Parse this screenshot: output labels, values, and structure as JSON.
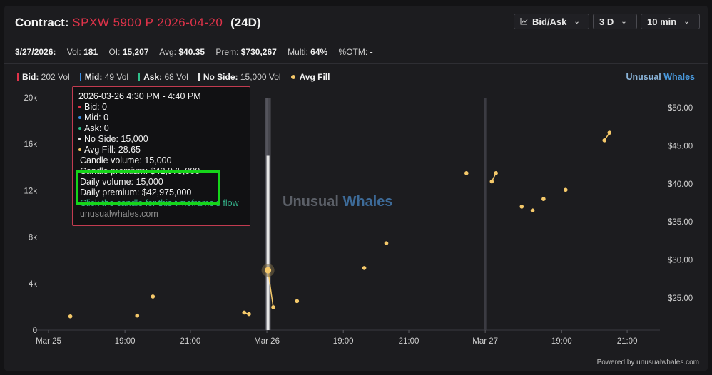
{
  "header": {
    "contract_label": "Contract:",
    "symbol": "SPXW 5900 P 2026-04-20",
    "days": "(24D)",
    "buttons": [
      {
        "label": "Bid/Ask",
        "icon": "chart-line-icon"
      },
      {
        "label": "3 D"
      },
      {
        "label": "10 min"
      }
    ]
  },
  "stats": {
    "date": "3/27/2026:",
    "vol_label": "Vol:",
    "vol": "181",
    "oi_label": "OI:",
    "oi": "15,207",
    "avg_label": "Avg:",
    "avg": "$40.35",
    "prem_label": "Prem:",
    "prem": "$730,267",
    "multi_label": "Multi:",
    "multi": "64%",
    "otm_label": "%OTM:",
    "otm": "-"
  },
  "legend": {
    "items": [
      {
        "name": "Bid:",
        "value": "202 Vol",
        "color": "#e0334a"
      },
      {
        "name": "Mid:",
        "value": "49 Vol",
        "color": "#3a8ee6"
      },
      {
        "name": "Ask:",
        "value": "68 Vol",
        "color": "#2fbf8a"
      },
      {
        "name": "No Side:",
        "value": "15,000 Vol",
        "color": "#e6e6e6"
      }
    ],
    "avg_fill": "Avg Fill",
    "avg_fill_color": "#f5c96a"
  },
  "brand": {
    "part1": "Unusual",
    "part2": "Whales"
  },
  "watermark": {
    "part1": "Unusual",
    "part2": "Whales"
  },
  "powered_by": "Powered by unusualwhales.com",
  "tooltip": {
    "time": "2026-03-26 4:30 PM - 4:40 PM",
    "bid": "Bid: 0",
    "mid": "Mid: 0",
    "ask": "Ask: 0",
    "no_side": "No Side: 15,000",
    "avg_fill": "Avg Fill: 28.65",
    "candle_volume": "Candle volume: 15,000",
    "candle_premium": "Candle premium: $42,975,000",
    "daily_volume": "Daily volume: 15,000",
    "daily_premium": "Daily premium: $42,975,000",
    "click_hint": "Click the candle for this timeframe's flow",
    "site": "unusualwhales.com"
  },
  "chart_data": {
    "type": "line",
    "x_tick_labels": [
      "Mar 25",
      "19:00",
      "21:00",
      "Mar 26",
      "19:00",
      "21:00",
      "Mar 27",
      "19:00",
      "21:00"
    ],
    "y_left_ticks": [
      "0",
      "4k",
      "8k",
      "12k",
      "16k",
      "20k"
    ],
    "y_left_range": [
      0,
      20000
    ],
    "y_right_ticks": [
      "$25.00",
      "$30.00",
      "$35.00",
      "$40.00",
      "$45.00",
      "$50.00"
    ],
    "y_right_range": [
      20.8,
      51.3
    ],
    "series": [
      {
        "name": "Avg Fill",
        "color": "#f5c96a",
        "points": [
          {
            "x": 1.0,
            "y": 22.6
          },
          {
            "x": 4.06,
            "y": 22.7
          },
          {
            "x": 4.78,
            "y": 25.2
          },
          {
            "x": 8.96,
            "y": 23.1
          },
          {
            "x": 9.18,
            "y": 22.9
          },
          {
            "x": 10.05,
            "y": 28.65,
            "highlight": true
          },
          {
            "x": 10.29,
            "y": 23.8
          },
          {
            "x": 11.38,
            "y": 24.6
          },
          {
            "x": 14.46,
            "y": 28.95
          },
          {
            "x": 15.47,
            "y": 32.2
          },
          {
            "x": 19.14,
            "y": 41.4
          },
          {
            "x": 20.3,
            "y": 40.3
          },
          {
            "x": 20.49,
            "y": 41.4
          },
          {
            "x": 21.67,
            "y": 37.0
          },
          {
            "x": 22.17,
            "y": 36.5
          },
          {
            "x": 22.67,
            "y": 38.0
          },
          {
            "x": 23.68,
            "y": 39.2
          },
          {
            "x": 25.46,
            "y": 45.7
          },
          {
            "x": 25.69,
            "y": 46.7
          }
        ],
        "segments": [
          [
            3,
            4
          ],
          [
            5,
            6
          ],
          [
            11,
            12
          ],
          [
            17,
            18
          ]
        ]
      },
      {
        "name": "No Side",
        "type": "bar",
        "color": "#e6e6e6",
        "x": 10.05,
        "value": 15000
      }
    ],
    "session_markers": [
      10.0,
      20.0
    ],
    "grid": false
  }
}
